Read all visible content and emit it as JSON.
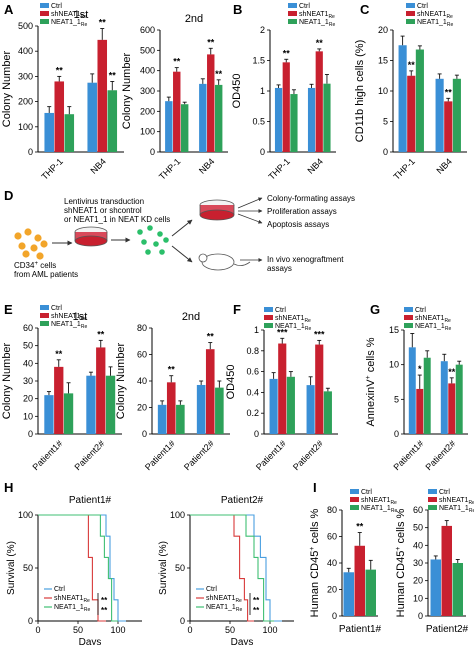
{
  "colors": {
    "ctrl": "#3a8fd6",
    "sh": "#c8202f",
    "neat": "#2ea15a",
    "err": "#111111",
    "dot": "#f2a52a",
    "cell": "#2bbf6a",
    "dish": "#d9495a",
    "arrow": "#333333",
    "km_ctrl": "#4a9fe0",
    "km_sh": "#d83a3a",
    "km_neat": "#3fbf73"
  },
  "legend": {
    "ctrl": "Ctrl",
    "sh": "shNEAT1",
    "sh_sub": "Re",
    "neat": "NEAT1_1",
    "neat_sub": "Re"
  },
  "panels": {
    "A": "A",
    "B": "B",
    "C": "C",
    "D": "D",
    "E": "E",
    "F": "F",
    "G": "G",
    "H": "H",
    "I": "I"
  },
  "sig": {
    "two": "**",
    "three": "***",
    "one": "*"
  },
  "schematic": {
    "lenti1": "Lentivirus transduction",
    "lenti2": "shNEAT1 or shcontrol",
    "lenti3": "or NEAT1_1 in NEAT KD cells",
    "cd34": "CD34",
    "cd34_sup": "+",
    "cd34_b": " cells",
    "from": "from AML patients",
    "a1": "Colony-formating assays",
    "a2": "Proliferation assays",
    "a3": "Apoptosis assays",
    "a4": "In vivo xenograftment",
    "a4b": "assays"
  },
  "survival": {
    "p1_title": "Patient1#",
    "p2_title": "Patient2#",
    "ylabel": "Survival (%)",
    "xlabel": "Days",
    "yticks": [
      0,
      50,
      100
    ],
    "xticks": [
      0,
      50,
      100
    ],
    "xlim": [
      0,
      130
    ]
  },
  "chart_data": [
    {
      "id": "A1",
      "type": "bar",
      "title": "1st",
      "ylabel": "Colony Number",
      "categories": [
        "THP-1",
        "NB4"
      ],
      "ylim": [
        0,
        500
      ],
      "yticks": [
        0,
        100,
        200,
        300,
        400,
        500
      ],
      "series": [
        {
          "name": "Ctrl",
          "values": [
            155,
            275
          ],
          "err": [
            25,
            35
          ]
        },
        {
          "name": "shNEAT1 Re",
          "values": [
            280,
            445
          ],
          "err": [
            20,
            45
          ]
        },
        {
          "name": "NEAT1_1 Re",
          "values": [
            150,
            245
          ],
          "err": [
            30,
            35
          ]
        }
      ],
      "sig": [
        [
          "**",
          "**"
        ],
        [
          "**"
        ]
      ]
    },
    {
      "id": "A2",
      "type": "bar",
      "title": "2nd",
      "ylabel": "Colony Number",
      "categories": [
        "THP-1",
        "NB4"
      ],
      "ylim": [
        0,
        600
      ],
      "yticks": [
        0,
        100,
        200,
        300,
        400,
        500,
        600
      ],
      "series": [
        {
          "name": "Ctrl",
          "values": [
            250,
            335
          ],
          "err": [
            20,
            25
          ]
        },
        {
          "name": "shNEAT1 Re",
          "values": [
            395,
            480
          ],
          "err": [
            20,
            30
          ]
        },
        {
          "name": "NEAT1_1 Re",
          "values": [
            235,
            330
          ],
          "err": [
            10,
            25
          ]
        }
      ]
    },
    {
      "id": "B",
      "type": "bar",
      "ylabel": "OD450",
      "categories": [
        "THP-1",
        "NB4"
      ],
      "ylim": [
        0,
        2.0
      ],
      "yticks": [
        0,
        0.5,
        1.0,
        1.5,
        2.0
      ],
      "series": [
        {
          "name": "Ctrl",
          "values": [
            1.05,
            1.05
          ],
          "err": [
            0.05,
            0.06
          ]
        },
        {
          "name": "shNEAT1 Re",
          "values": [
            1.47,
            1.65
          ],
          "err": [
            0.05,
            0.04
          ]
        },
        {
          "name": "NEAT1_1 Re",
          "values": [
            0.95,
            1.12
          ],
          "err": [
            0.07,
            0.15
          ]
        }
      ]
    },
    {
      "id": "C",
      "type": "bar",
      "ylabel": "CD11b high cells (%)",
      "categories": [
        "THP-1",
        "NB4"
      ],
      "ylim": [
        0,
        20
      ],
      "yticks": [
        0,
        5,
        10,
        15,
        20
      ],
      "series": [
        {
          "name": "Ctrl",
          "values": [
            17.5,
            12.0
          ],
          "err": [
            1.5,
            0.8
          ]
        },
        {
          "name": "shNEAT1 Re",
          "values": [
            12.5,
            8.3
          ],
          "err": [
            0.8,
            0.5
          ]
        },
        {
          "name": "NEAT1_1 Re",
          "values": [
            16.8,
            12.0
          ],
          "err": [
            0.6,
            0.6
          ]
        }
      ]
    },
    {
      "id": "E1",
      "type": "bar",
      "title": "1st",
      "ylabel": "Colony Number",
      "categories": [
        "Patient1#",
        "Patient2#"
      ],
      "ylim": [
        0,
        60
      ],
      "yticks": [
        0,
        10,
        20,
        30,
        40,
        50,
        60
      ],
      "series": [
        {
          "name": "Ctrl",
          "values": [
            22,
            33
          ],
          "err": [
            2,
            2
          ]
        },
        {
          "name": "shNEAT1 Re",
          "values": [
            38,
            49
          ],
          "err": [
            4,
            4
          ]
        },
        {
          "name": "NEAT1_1 Re",
          "values": [
            23,
            33
          ],
          "err": [
            6,
            5
          ]
        }
      ]
    },
    {
      "id": "E2",
      "type": "bar",
      "title": "2nd",
      "ylabel": "Colony Number",
      "categories": [
        "Patient1#",
        "Patient2#"
      ],
      "ylim": [
        0,
        80
      ],
      "yticks": [
        0,
        20,
        40,
        60,
        80
      ],
      "series": [
        {
          "name": "Ctrl",
          "values": [
            22,
            37
          ],
          "err": [
            3,
            3
          ]
        },
        {
          "name": "shNEAT1 Re",
          "values": [
            39,
            64
          ],
          "err": [
            5,
            5
          ]
        },
        {
          "name": "NEAT1_1 Re",
          "values": [
            22,
            35
          ],
          "err": [
            3,
            5
          ]
        }
      ]
    },
    {
      "id": "F",
      "type": "bar",
      "ylabel": "OD450",
      "categories": [
        "Patient1#",
        "Patient2#"
      ],
      "ylim": [
        0,
        1.0
      ],
      "yticks": [
        0,
        0.2,
        0.4,
        0.6,
        0.8,
        1.0
      ],
      "series": [
        {
          "name": "Ctrl",
          "values": [
            0.53,
            0.47
          ],
          "err": [
            0.06,
            0.08
          ]
        },
        {
          "name": "shNEAT1 Re",
          "values": [
            0.87,
            0.86
          ],
          "err": [
            0.05,
            0.04
          ]
        },
        {
          "name": "NEAT1_1 Re",
          "values": [
            0.55,
            0.41
          ],
          "err": [
            0.05,
            0.03
          ]
        }
      ]
    },
    {
      "id": "G",
      "type": "bar",
      "ylabel": "AnnexinV cells %",
      "ylabel_sup": "+",
      "categories": [
        "Patient1#",
        "Patient2#"
      ],
      "ylim": [
        0,
        15
      ],
      "yticks": [
        0,
        5,
        10,
        15
      ],
      "series": [
        {
          "name": "Ctrl",
          "values": [
            12.5,
            10.5
          ],
          "err": [
            2.0,
            1.0
          ]
        },
        {
          "name": "shNEAT1 Re",
          "values": [
            6.5,
            7.3
          ],
          "err": [
            2.0,
            0.8
          ]
        },
        {
          "name": "NEAT1_1 Re",
          "values": [
            11.0,
            10.0
          ],
          "err": [
            1.0,
            0.5
          ]
        }
      ]
    },
    {
      "id": "I1",
      "type": "bar",
      "xlabel": "Patient1#",
      "ylabel": "Human CD45 cells %",
      "ylabel_sup": "+",
      "categories": [
        ""
      ],
      "ylim": [
        0,
        80
      ],
      "yticks": [
        0,
        20,
        40,
        60,
        80
      ],
      "series": [
        {
          "name": "Ctrl",
          "values": [
            33
          ],
          "err": [
            3
          ]
        },
        {
          "name": "shNEAT1 Re",
          "values": [
            53
          ],
          "err": [
            10
          ]
        },
        {
          "name": "NEAT1_1 Re",
          "values": [
            35
          ],
          "err": [
            7
          ]
        }
      ]
    },
    {
      "id": "I2",
      "type": "bar",
      "xlabel": "Patient2#",
      "ylabel": "Human CD45 cells %",
      "ylabel_sup": "+",
      "categories": [
        ""
      ],
      "ylim": [
        0,
        60
      ],
      "yticks": [
        0,
        10,
        20,
        30,
        40,
        50,
        60
      ],
      "series": [
        {
          "name": "Ctrl",
          "values": [
            32
          ],
          "err": [
            2
          ]
        },
        {
          "name": "shNEAT1 Re",
          "values": [
            51
          ],
          "err": [
            3
          ]
        },
        {
          "name": "NEAT1_1 Re",
          "values": [
            30
          ],
          "err": [
            2
          ]
        }
      ]
    },
    {
      "id": "H1",
      "type": "line",
      "title": "Patient1#",
      "xlabel": "Days",
      "ylabel": "Survival (%)",
      "series": [
        {
          "name": "Ctrl",
          "points": [
            [
              0,
              100
            ],
            [
              85,
              100
            ],
            [
              85,
              80
            ],
            [
              90,
              80
            ],
            [
              90,
              40
            ],
            [
              95,
              40
            ],
            [
              95,
              20
            ],
            [
              100,
              20
            ],
            [
              100,
              0
            ],
            [
              110,
              0
            ]
          ]
        },
        {
          "name": "shNEAT1 Re",
          "points": [
            [
              0,
              100
            ],
            [
              63,
              100
            ],
            [
              63,
              60
            ],
            [
              68,
              60
            ],
            [
              68,
              20
            ],
            [
              75,
              20
            ],
            [
              75,
              0
            ],
            [
              85,
              0
            ]
          ]
        },
        {
          "name": "NEAT1_1 Re",
          "points": [
            [
              0,
              100
            ],
            [
              78,
              100
            ],
            [
              78,
              80
            ],
            [
              83,
              80
            ],
            [
              83,
              60
            ],
            [
              88,
              60
            ],
            [
              88,
              40
            ],
            [
              92,
              40
            ],
            [
              92,
              0
            ],
            [
              100,
              0
            ]
          ]
        }
      ]
    },
    {
      "id": "H2",
      "type": "line",
      "title": "Patient2#",
      "xlabel": "Days",
      "ylabel": "Survival (%)",
      "series": [
        {
          "name": "Ctrl",
          "points": [
            [
              0,
              100
            ],
            [
              80,
              100
            ],
            [
              80,
              80
            ],
            [
              88,
              80
            ],
            [
              88,
              60
            ],
            [
              95,
              60
            ],
            [
              95,
              20
            ],
            [
              100,
              20
            ],
            [
              100,
              0
            ],
            [
              115,
              0
            ]
          ]
        },
        {
          "name": "shNEAT1 Re",
          "points": [
            [
              0,
              100
            ],
            [
              55,
              100
            ],
            [
              55,
              80
            ],
            [
              62,
              80
            ],
            [
              62,
              40
            ],
            [
              68,
              40
            ],
            [
              68,
              20
            ],
            [
              72,
              20
            ],
            [
              72,
              0
            ],
            [
              80,
              0
            ]
          ]
        },
        {
          "name": "NEAT1_1 Re",
          "points": [
            [
              0,
              100
            ],
            [
              70,
              100
            ],
            [
              70,
              80
            ],
            [
              80,
              80
            ],
            [
              80,
              60
            ],
            [
              85,
              60
            ],
            [
              85,
              40
            ],
            [
              92,
              40
            ],
            [
              92,
              0
            ],
            [
              105,
              0
            ]
          ]
        }
      ]
    }
  ]
}
